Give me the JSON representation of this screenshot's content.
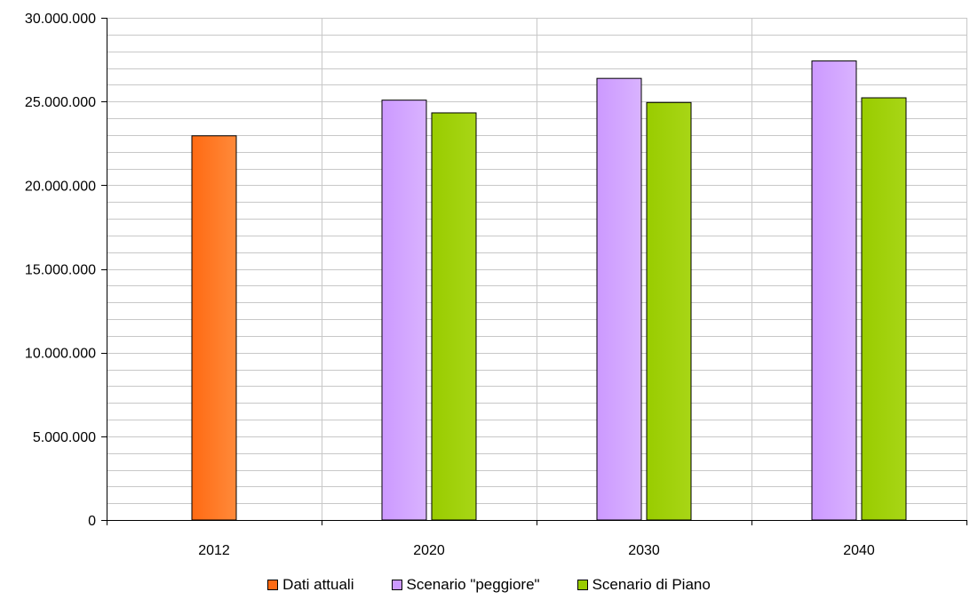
{
  "chart_data": {
    "type": "bar",
    "title": "",
    "xlabel": "",
    "ylabel": "",
    "categories": [
      "2012",
      "2020",
      "2030",
      "2040"
    ],
    "ylim": [
      0,
      30000000
    ],
    "y_ticks": [
      "0",
      "5.000.000",
      "10.000.000",
      "15.000.000",
      "20.000.000",
      "25.000.000",
      "30.000.000"
    ],
    "y_tick_values": [
      0,
      5000000,
      10000000,
      15000000,
      20000000,
      25000000,
      30000000
    ],
    "grid": true,
    "legend_position": "bottom",
    "series": [
      {
        "name": "Dati attuali",
        "color": "#ff6a13",
        "values": [
          22950000,
          null,
          null,
          null
        ]
      },
      {
        "name": "Scenario \"peggiore\"",
        "color": "#cc99ff",
        "values": [
          null,
          25080000,
          26380000,
          27420000
        ]
      },
      {
        "name": "Scenario di Piano",
        "color": "#99cc00",
        "values": [
          null,
          24320000,
          24940000,
          25220000
        ]
      }
    ]
  }
}
